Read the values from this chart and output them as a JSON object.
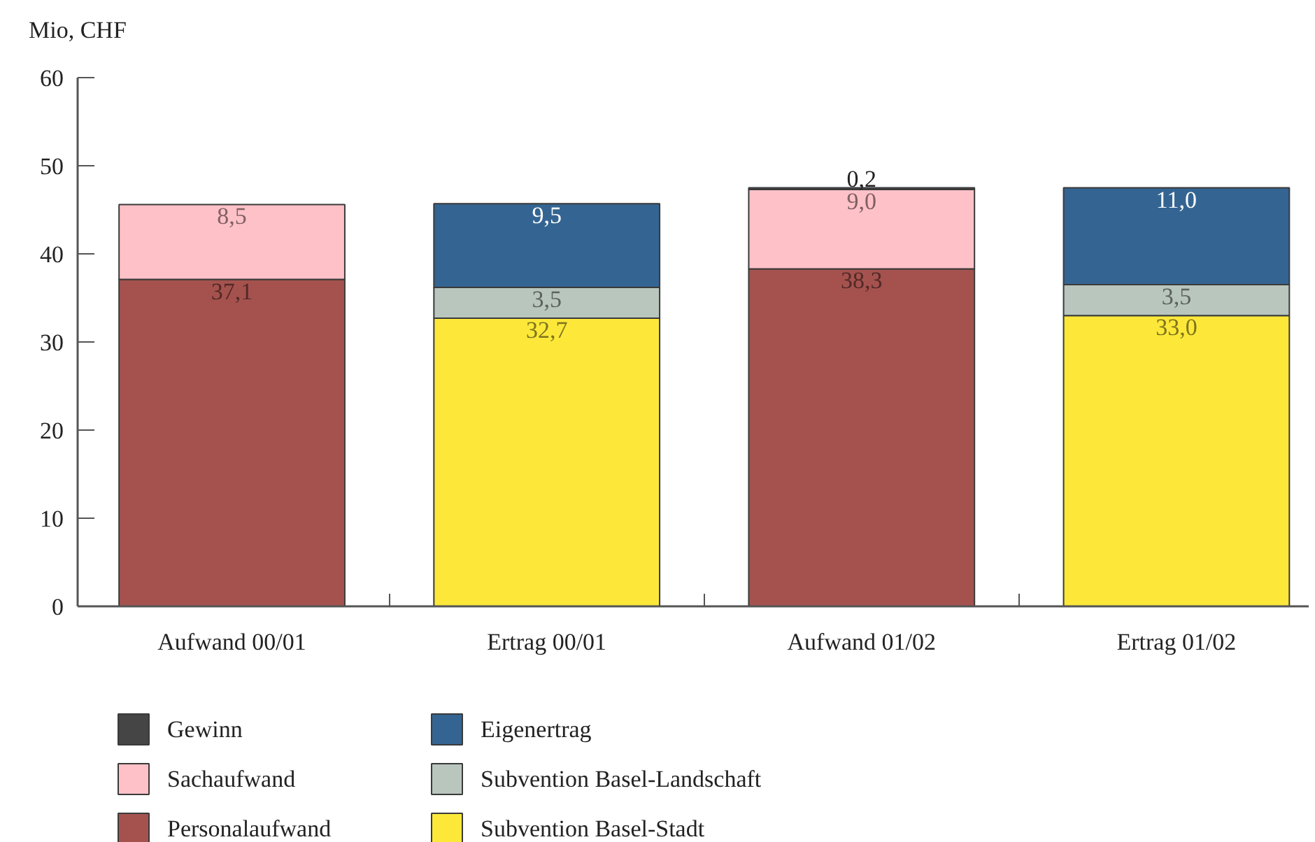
{
  "chart_data": {
    "type": "bar",
    "stacked": true,
    "ylabel": "Mio, CHF",
    "categories": [
      "Aufwand 00/01",
      "Ertrag 00/01",
      "Aufwand 01/02",
      "Ertrag 01/02"
    ],
    "series": [
      {
        "name": "Subvention Basel-Stadt",
        "color": "#fde83a",
        "values": [
          null,
          32.7,
          null,
          33.0
        ],
        "value_labels": [
          null,
          "32,7",
          null,
          "33,0"
        ]
      },
      {
        "name": "Subvention Basel-Landschaft",
        "color": "#b9c6be",
        "values": [
          null,
          3.5,
          null,
          3.5
        ],
        "value_labels": [
          null,
          "3,5",
          null,
          "3,5"
        ]
      },
      {
        "name": "Eigenertrag",
        "color": "#346592",
        "values": [
          null,
          9.5,
          null,
          11.0
        ],
        "value_labels": [
          null,
          "9,5",
          null,
          "11,0"
        ]
      },
      {
        "name": "Personalaufwand",
        "color": "#a5524e",
        "values": [
          37.1,
          null,
          38.3,
          null
        ],
        "value_labels": [
          "37,1",
          null,
          "38,3",
          null
        ]
      },
      {
        "name": "Sachaufwand",
        "color": "#ffc1c8",
        "values": [
          8.5,
          null,
          9.0,
          null
        ],
        "value_labels": [
          "8,5",
          null,
          "9,0",
          null
        ]
      },
      {
        "name": "Gewinn",
        "color": "#454545",
        "values": [
          null,
          null,
          0.2,
          null
        ],
        "value_labels": [
          null,
          null,
          "0,2",
          null
        ]
      }
    ],
    "ylim": [
      0,
      60
    ],
    "yticks": [
      0,
      10,
      20,
      30,
      40,
      50,
      60
    ],
    "legend": "bottom"
  }
}
